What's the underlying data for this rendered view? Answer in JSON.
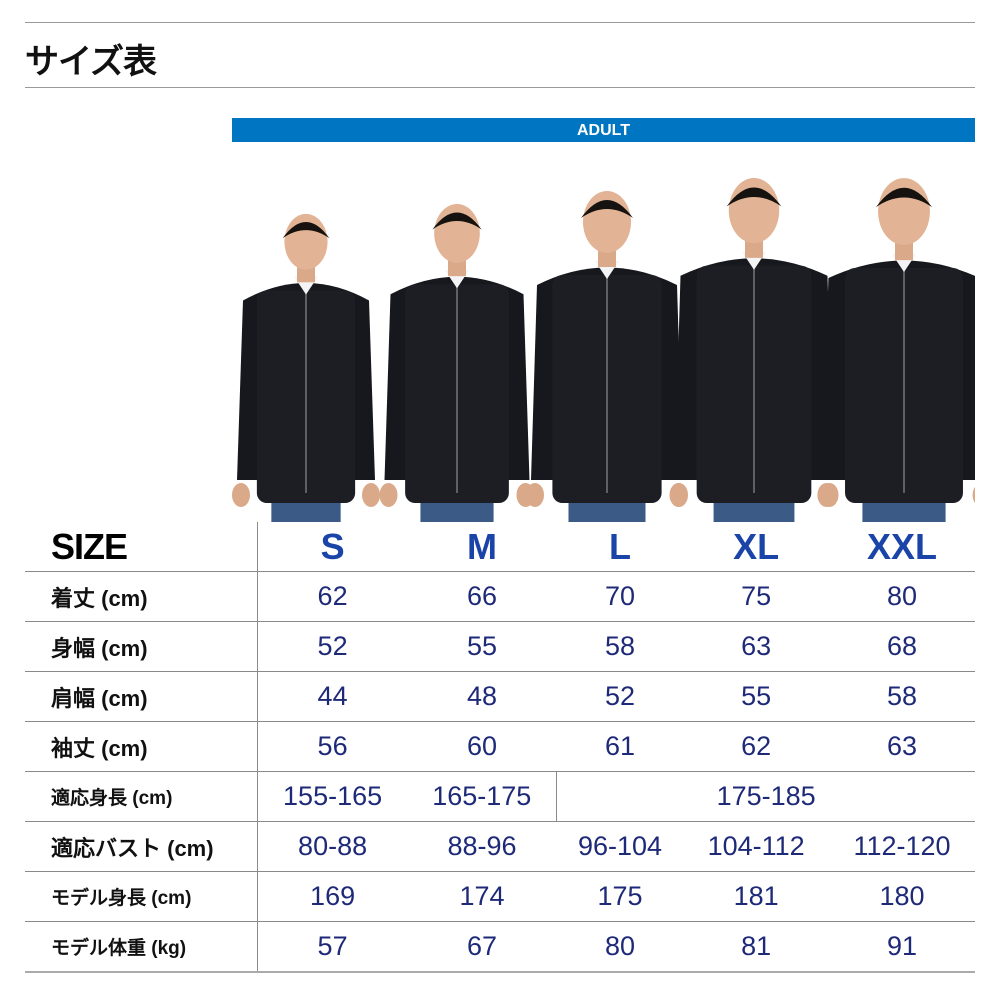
{
  "title": "サイズ表",
  "band_label": "ADULT",
  "colors": {
    "band": "#0075c1",
    "size_letters": "#1a44a8",
    "values": "#1e2a78"
  },
  "photo": {
    "description_icon": "models-in-black-zip-hoodies"
  },
  "table": {
    "header": {
      "label": "SIZE",
      "sizes": [
        "S",
        "M",
        "L",
        "XL",
        "XXL"
      ]
    },
    "rows": [
      {
        "label": "着丈 (cm)",
        "values": [
          "62",
          "66",
          "70",
          "75",
          "80"
        ]
      },
      {
        "label": "身幅 (cm)",
        "values": [
          "52",
          "55",
          "58",
          "63",
          "68"
        ]
      },
      {
        "label": "肩幅 (cm)",
        "values": [
          "44",
          "48",
          "52",
          "55",
          "58"
        ]
      },
      {
        "label": "袖丈 (cm)",
        "values": [
          "56",
          "60",
          "61",
          "62",
          "63"
        ]
      },
      {
        "label": "適応身長 (cm)",
        "values": [
          "155-165",
          "165-175",
          "175-185"
        ]
      },
      {
        "label": "適応バスト (cm)",
        "values": [
          "80-88",
          "88-96",
          "96-104",
          "104-112",
          "112-120"
        ]
      },
      {
        "label": "モデル身長 (cm)",
        "values": [
          "169",
          "174",
          "175",
          "181",
          "180"
        ]
      },
      {
        "label": "モデル体重 (kg)",
        "values": [
          "57",
          "67",
          "80",
          "81",
          "91"
        ]
      }
    ]
  }
}
